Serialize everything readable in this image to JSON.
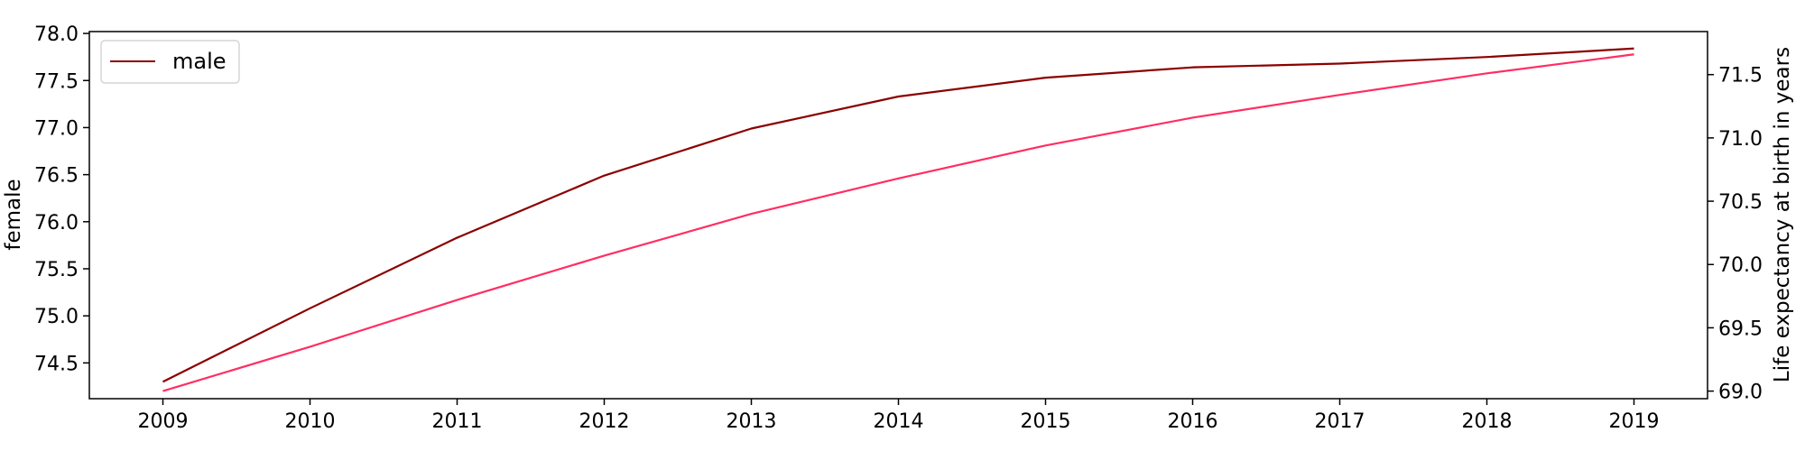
{
  "chart_data": {
    "type": "line",
    "x": [
      2009,
      2010,
      2011,
      2012,
      2013,
      2014,
      2015,
      2016,
      2017,
      2018,
      2019
    ],
    "xticks": [
      "2009",
      "2010",
      "2011",
      "2012",
      "2013",
      "2014",
      "2015",
      "2016",
      "2017",
      "2018",
      "2019"
    ],
    "xlim": [
      2008.5,
      2019.5
    ],
    "left_axis": {
      "label": "female",
      "ylim": [
        74.12,
        78.02
      ],
      "ticks": [
        "74.5",
        "75.0",
        "75.5",
        "76.0",
        "76.5",
        "77.0",
        "77.5",
        "78.0"
      ],
      "tick_values": [
        74.5,
        75.0,
        75.5,
        76.0,
        76.5,
        77.0,
        77.5,
        78.0
      ]
    },
    "right_axis": {
      "label": "Life expectancy at birth in years",
      "ylim": [
        68.94,
        71.84
      ],
      "ticks": [
        "69.0",
        "69.5",
        "70.0",
        "70.5",
        "71.0",
        "71.5"
      ],
      "tick_values": [
        69.0,
        69.5,
        70.0,
        70.5,
        71.0,
        71.5
      ]
    },
    "series": [
      {
        "name": "male",
        "axis": "left",
        "color": "#8b0000",
        "values": [
          74.3,
          75.08,
          75.83,
          76.49,
          76.99,
          77.33,
          77.53,
          77.64,
          77.68,
          77.75,
          77.84
        ]
      },
      {
        "axis": "right",
        "color": "#ff2e63",
        "values": [
          69.0,
          69.35,
          69.72,
          70.07,
          70.4,
          70.68,
          70.94,
          71.16,
          71.34,
          71.51,
          71.66
        ]
      }
    ],
    "legend": {
      "position": "top-left",
      "entries": [
        "male"
      ]
    },
    "grid": false
  }
}
